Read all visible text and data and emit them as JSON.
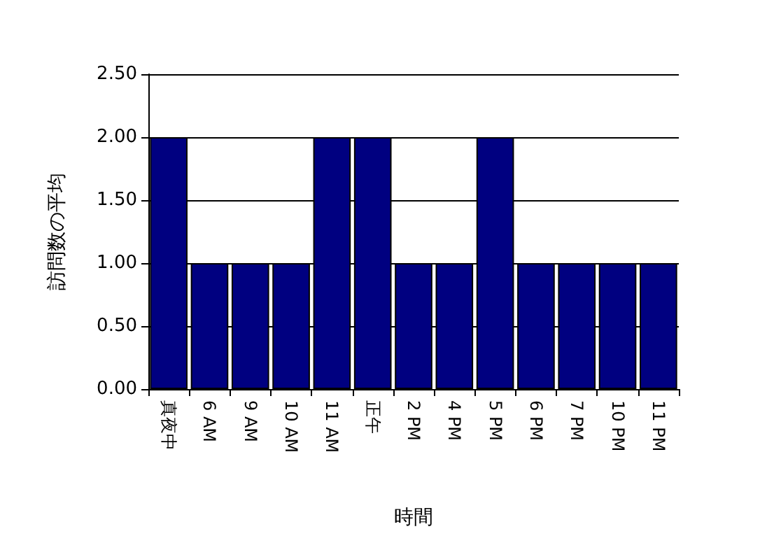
{
  "chart_data": {
    "type": "bar",
    "xlabel": "時間",
    "ylabel": "訪問数の平均",
    "categories": [
      "真夜中",
      "6 AM",
      "9 AM",
      "10 AM",
      "11 AM",
      "正午",
      "2 PM",
      "4 PM",
      "5 PM",
      "6 PM",
      "7 PM",
      "10 PM",
      "11 PM"
    ],
    "values": [
      2,
      1,
      1,
      1,
      2,
      2,
      1,
      1,
      2,
      1,
      1,
      1,
      1
    ],
    "color": "#000080",
    "ylim": [
      0,
      2.5
    ],
    "yticks": [
      {
        "value": 0,
        "label": "0.00"
      },
      {
        "value": 0.5,
        "label": "0.50"
      },
      {
        "value": 1,
        "label": "1.00"
      },
      {
        "value": 1.5,
        "label": "1.50"
      },
      {
        "value": 2,
        "label": "2.00"
      },
      {
        "value": 2.5,
        "label": "2.50"
      }
    ],
    "grid": "y"
  }
}
